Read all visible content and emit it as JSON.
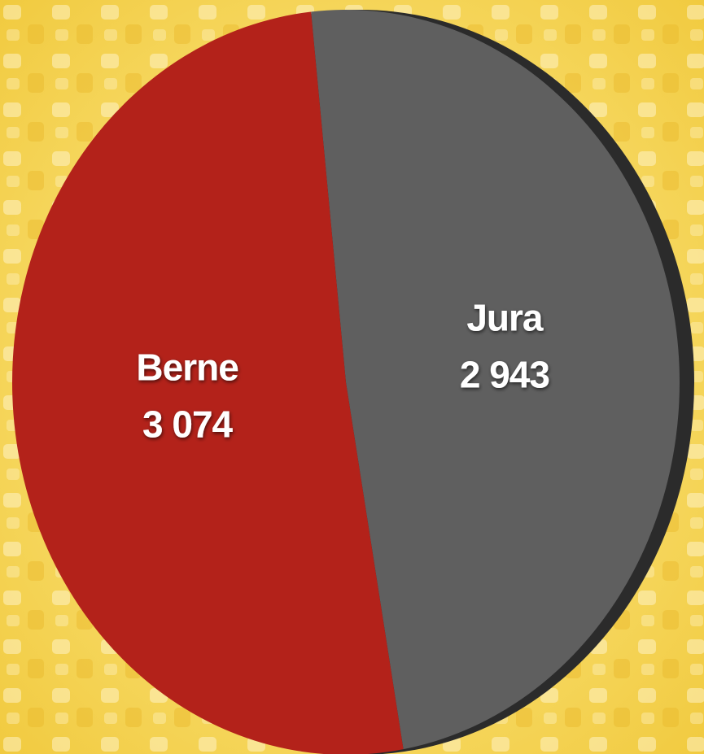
{
  "chart_data": {
    "type": "pie",
    "categories": [
      "Berne",
      "Jura"
    ],
    "values": [
      3074,
      2943
    ],
    "value_labels": [
      "3 074",
      "2 943"
    ],
    "colors": [
      "#b3221a",
      "#5f5f5f"
    ]
  }
}
